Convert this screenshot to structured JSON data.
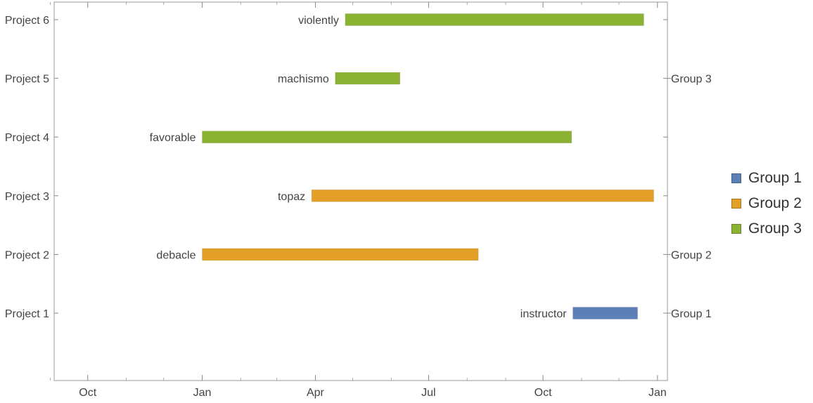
{
  "chart_data": {
    "type": "timeline",
    "x_axis": {
      "ticks": [
        {
          "date": "2023-10-01",
          "label": "Oct"
        },
        {
          "date": "2024-01-01",
          "label": "Jan"
        },
        {
          "date": "2024-04-01",
          "label": "Apr"
        },
        {
          "date": "2024-07-01",
          "label": "Jul"
        },
        {
          "date": "2024-10-01",
          "label": "Oct"
        },
        {
          "date": "2025-01-01",
          "label": "Jan"
        }
      ],
      "minor_ticks": [
        "2023-09-01",
        "2023-11-01",
        "2023-12-01",
        "2024-02-01",
        "2024-03-01",
        "2024-05-01",
        "2024-06-01",
        "2024-08-01",
        "2024-09-01",
        "2024-11-01",
        "2024-12-01"
      ],
      "range": [
        "2023-09-04",
        "2025-01-09"
      ]
    },
    "rows": [
      "Project 1",
      "Project 2",
      "Project 3",
      "Project 4",
      "Project 5",
      "Project 6"
    ],
    "group_axis_labels": [
      {
        "row": "Project 1",
        "label": "Group 1"
      },
      {
        "row": "Project 2",
        "label": "Group 2"
      },
      {
        "row": "Project 5",
        "label": "Group 3"
      }
    ],
    "legend": [
      {
        "label": "Group 1",
        "color": "#5b7fb6"
      },
      {
        "label": "Group 2",
        "color": "#e3a028"
      },
      {
        "label": "Group 3",
        "color": "#8cb233"
      }
    ],
    "bars": [
      {
        "row": "Project 1",
        "label": "instructor",
        "start": "2024-10-25",
        "end": "2024-12-16",
        "group": "Group 1"
      },
      {
        "row": "Project 2",
        "label": "debacle",
        "start": "2024-01-01",
        "end": "2024-08-10",
        "group": "Group 2"
      },
      {
        "row": "Project 3",
        "label": "topaz",
        "start": "2024-03-29",
        "end": "2024-12-29",
        "group": "Group 2"
      },
      {
        "row": "Project 4",
        "label": "favorable",
        "start": "2024-01-01",
        "end": "2024-10-24",
        "group": "Group 3"
      },
      {
        "row": "Project 5",
        "label": "machismo",
        "start": "2024-04-17",
        "end": "2024-06-08",
        "group": "Group 3"
      },
      {
        "row": "Project 6",
        "label": "violently",
        "start": "2024-04-25",
        "end": "2024-12-21",
        "group": "Group 3"
      }
    ]
  }
}
